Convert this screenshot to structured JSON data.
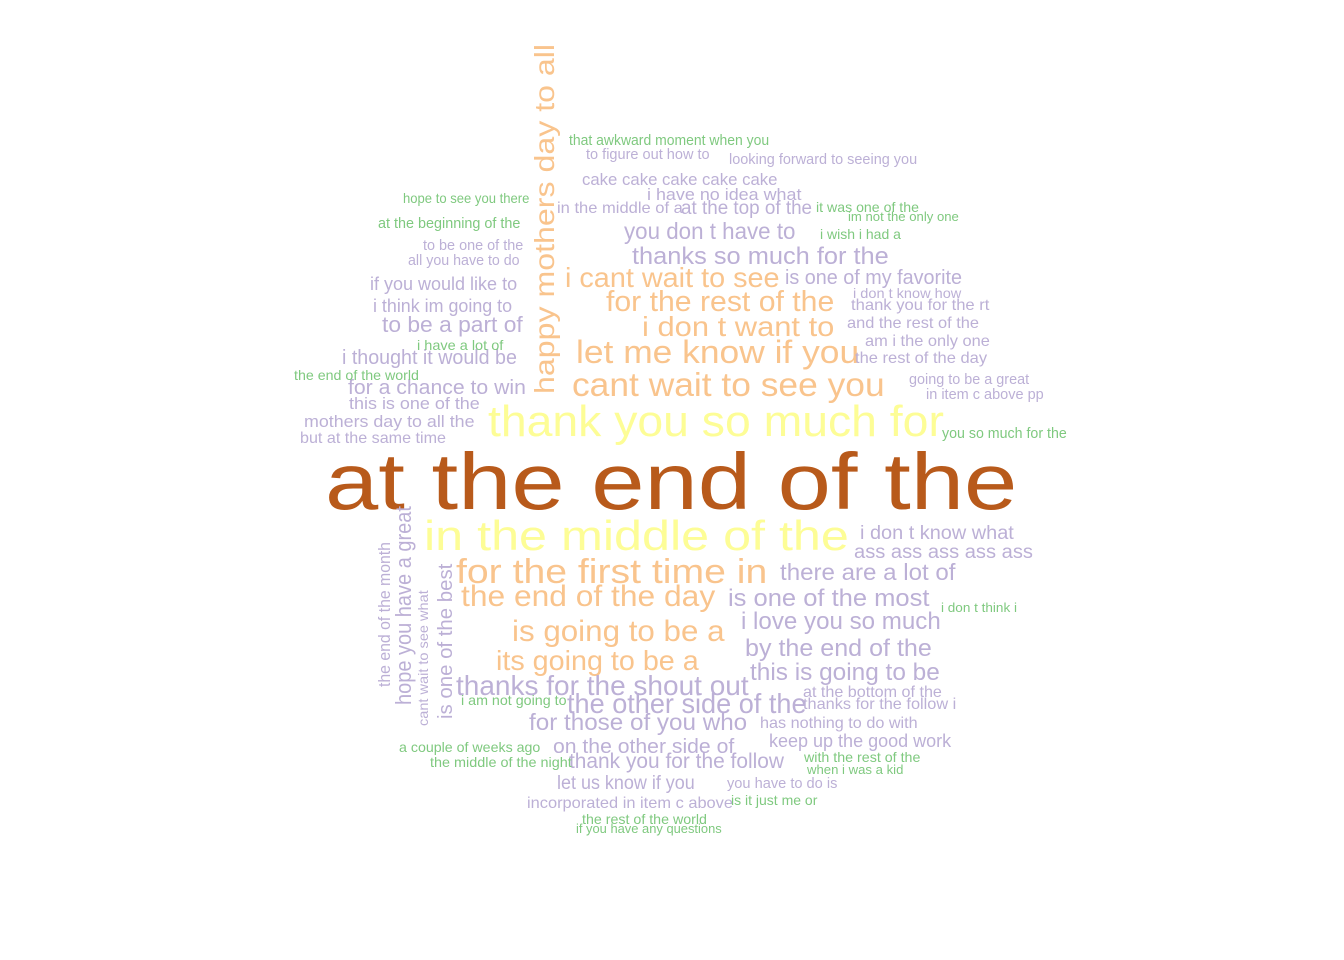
{
  "palette": {
    "dark_orange": "#b85a1b",
    "yellow": "#fdfd96",
    "orange": "#f9c48d",
    "purple": "#bcb0d6",
    "green": "#7fc97f"
  },
  "words": [
    {
      "text": "at the end of the",
      "color": "dark_orange"
    },
    {
      "text": "thank you so much for",
      "color": "yellow"
    },
    {
      "text": "in the middle of the",
      "color": "yellow"
    },
    {
      "text": "happy mothers day to all",
      "color": "orange"
    },
    {
      "text": "let me know if you",
      "color": "orange"
    },
    {
      "text": "cant wait to see you",
      "color": "orange"
    },
    {
      "text": "for the first time in",
      "color": "orange"
    },
    {
      "text": "the end of the day",
      "color": "orange"
    },
    {
      "text": "is going to be a",
      "color": "orange"
    },
    {
      "text": "its going to be a",
      "color": "orange"
    },
    {
      "text": "i cant wait to see",
      "color": "orange"
    },
    {
      "text": "for the rest of the",
      "color": "orange"
    },
    {
      "text": "i don t want to",
      "color": "orange"
    },
    {
      "text": "thanks so much for the",
      "color": "purple"
    },
    {
      "text": "you don t have to",
      "color": "purple"
    },
    {
      "text": "is one of my favorite",
      "color": "purple"
    },
    {
      "text": "thanks for the shout out",
      "color": "purple"
    },
    {
      "text": "the other side of the",
      "color": "purple"
    },
    {
      "text": "for those of you who",
      "color": "purple"
    },
    {
      "text": "on the other side of",
      "color": "purple"
    },
    {
      "text": "thank you for the follow",
      "color": "purple"
    },
    {
      "text": "let us know if you",
      "color": "purple"
    },
    {
      "text": "incorporated in item c above",
      "color": "purple"
    },
    {
      "text": "is one of the most",
      "color": "purple"
    },
    {
      "text": "i love you so much",
      "color": "purple"
    },
    {
      "text": "by the end of the",
      "color": "purple"
    },
    {
      "text": "this is going to be",
      "color": "purple"
    },
    {
      "text": "there are a lot of",
      "color": "purple"
    },
    {
      "text": "i don t know what",
      "color": "purple"
    },
    {
      "text": "ass ass ass ass ass",
      "color": "purple"
    },
    {
      "text": "keep up the good work",
      "color": "purple"
    },
    {
      "text": "has nothing to do with",
      "color": "purple"
    },
    {
      "text": "at the bottom of the",
      "color": "purple"
    },
    {
      "text": "thanks for the follow i",
      "color": "purple"
    },
    {
      "text": "you have to do is",
      "color": "purple"
    },
    {
      "text": "to be a part of",
      "color": "purple"
    },
    {
      "text": "i thought it would be",
      "color": "purple"
    },
    {
      "text": "for a chance to win",
      "color": "purple"
    },
    {
      "text": "this is one of the",
      "color": "purple"
    },
    {
      "text": "mothers day to all the",
      "color": "purple"
    },
    {
      "text": "but at the same time",
      "color": "purple"
    },
    {
      "text": "if you would like to",
      "color": "purple"
    },
    {
      "text": "i think im going to",
      "color": "purple"
    },
    {
      "text": "to be one of the",
      "color": "purple"
    },
    {
      "text": "all you have to do",
      "color": "purple"
    },
    {
      "text": "cake cake cake cake cake",
      "color": "purple"
    },
    {
      "text": "i have no idea what",
      "color": "purple"
    },
    {
      "text": "in the middle of a",
      "color": "purple"
    },
    {
      "text": "at the top of the",
      "color": "purple"
    },
    {
      "text": "to figure out how to",
      "color": "purple"
    },
    {
      "text": "looking forward to seeing you",
      "color": "purple"
    },
    {
      "text": "i don t know how",
      "color": "purple"
    },
    {
      "text": "thank you for the rt",
      "color": "purple"
    },
    {
      "text": "and the rest of the",
      "color": "purple"
    },
    {
      "text": "am i the only one",
      "color": "purple"
    },
    {
      "text": "the rest of the day",
      "color": "purple"
    },
    {
      "text": "going to be a great",
      "color": "purple"
    },
    {
      "text": "in item c above pp",
      "color": "purple"
    },
    {
      "text": "hope you have a great",
      "color": "purple"
    },
    {
      "text": "is one of the best",
      "color": "purple"
    },
    {
      "text": "the end of the month",
      "color": "purple"
    },
    {
      "text": "cant wait to see what",
      "color": "purple"
    },
    {
      "text": "that awkward moment when you",
      "color": "green"
    },
    {
      "text": "hope to see you there",
      "color": "green"
    },
    {
      "text": "at the beginning of the",
      "color": "green"
    },
    {
      "text": "it was one of the",
      "color": "green"
    },
    {
      "text": "im not the only one",
      "color": "green"
    },
    {
      "text": "i wish i had a",
      "color": "green"
    },
    {
      "text": "i have a lot of",
      "color": "green"
    },
    {
      "text": "the end of the world",
      "color": "green"
    },
    {
      "text": "you so much for the",
      "color": "green"
    },
    {
      "text": "i don t think i",
      "color": "green"
    },
    {
      "text": "i am not going to",
      "color": "green"
    },
    {
      "text": "a couple of weeks ago",
      "color": "green"
    },
    {
      "text": "the middle of the night",
      "color": "green"
    },
    {
      "text": "with the rest of the",
      "color": "green"
    },
    {
      "text": "when i was a kid",
      "color": "green"
    },
    {
      "text": "is it just me or",
      "color": "green"
    },
    {
      "text": "the rest of the world",
      "color": "green"
    },
    {
      "text": "if you have any questions",
      "color": "green"
    }
  ]
}
